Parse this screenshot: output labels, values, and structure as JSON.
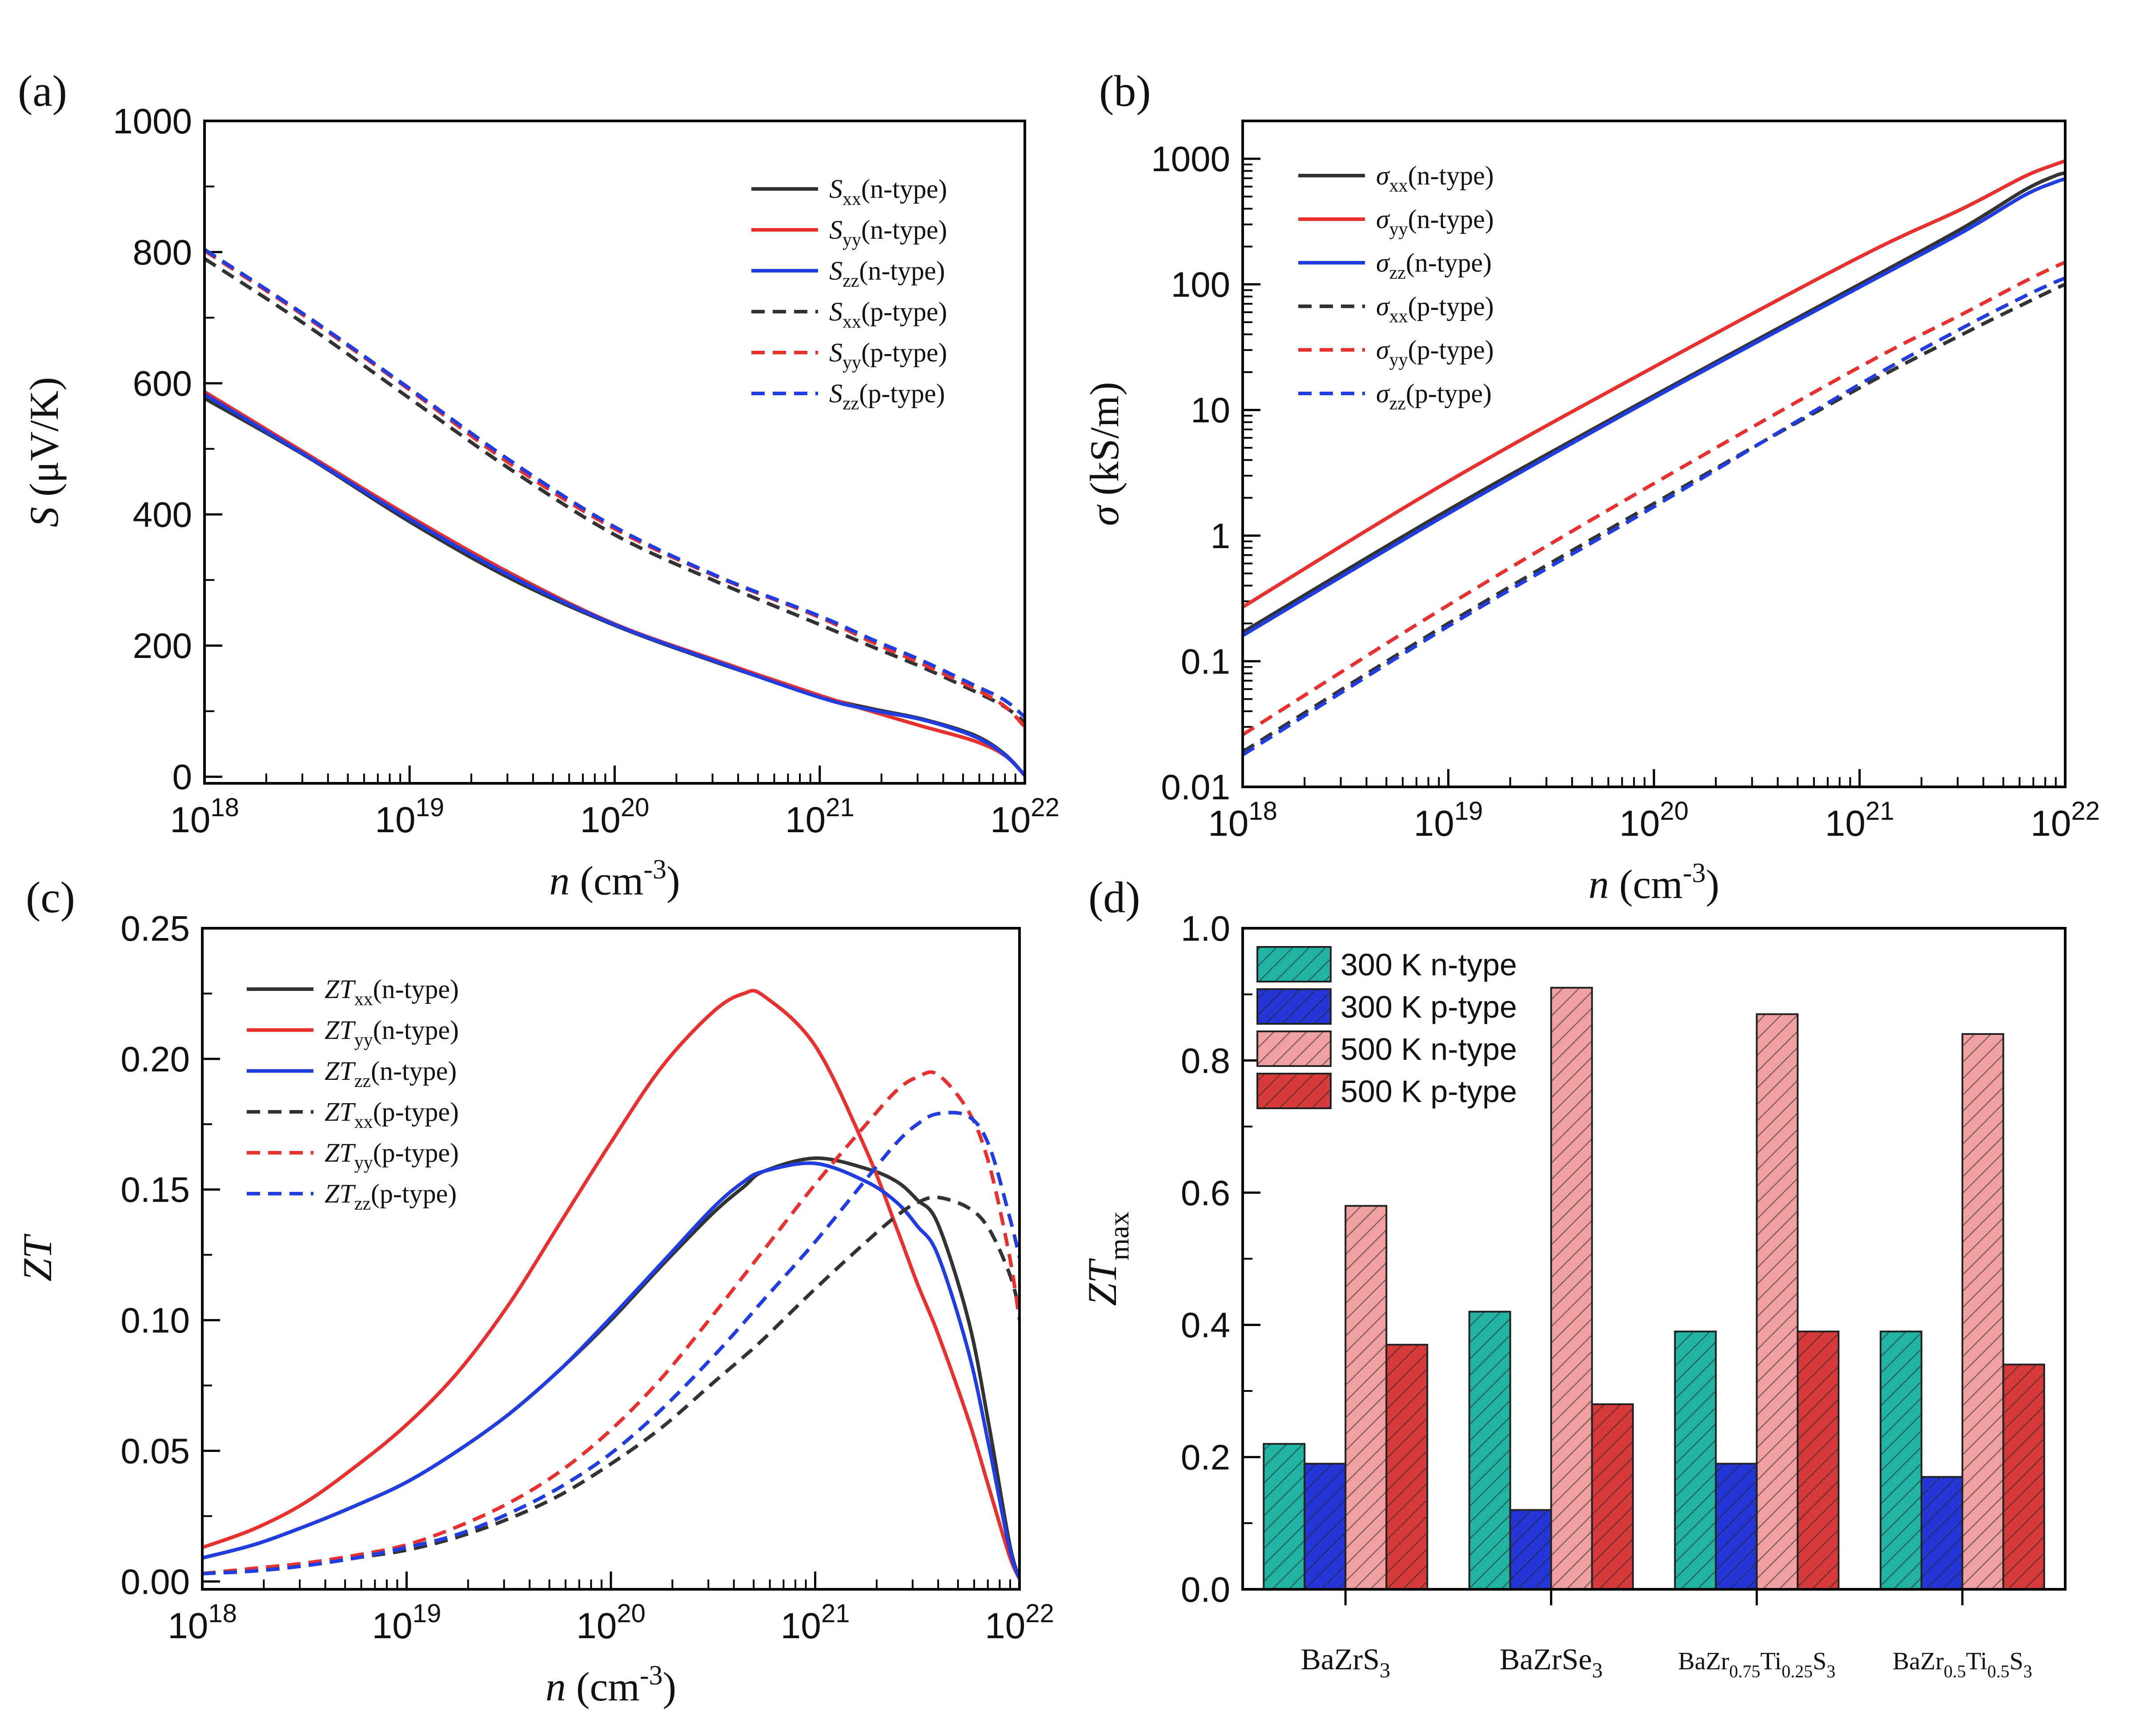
{
  "figure": {
    "colors": {
      "black": "#333333",
      "red": "#e8302f",
      "blue": "#1f3de0",
      "teal": "#22b3a2",
      "navy": "#2536d6",
      "pink": "#f0a0a0",
      "darkred": "#d63a3a"
    }
  },
  "chart_data": [
    {
      "id": "a",
      "panel_label": "(a)",
      "type": "line",
      "title": "",
      "xlabel": {
        "italic": "n",
        "text": " (cm",
        "sup": "-3",
        "close": ")"
      },
      "ylabel": {
        "italic": "S",
        "text": " (μV/K)"
      },
      "xscale": "log",
      "xlim": [
        1e+18,
        1e+22
      ],
      "ylim": [
        -10,
        1000
      ],
      "xticks": [
        {
          "exp": "18",
          "base": "10"
        },
        {
          "exp": "19",
          "base": "10"
        },
        {
          "exp": "20",
          "base": "10"
        },
        {
          "exp": "21",
          "base": "10"
        },
        {
          "exp": "22",
          "base": "10"
        }
      ],
      "yticks": [
        "0",
        "200",
        "400",
        "600",
        "800",
        "1000"
      ],
      "ytick_values": [
        0,
        200,
        400,
        600,
        800,
        1000
      ],
      "legend_position": "top-right",
      "x_log10": [
        18,
        18.5,
        19,
        19.5,
        20,
        20.5,
        21,
        21.25,
        21.5,
        21.75,
        21.9,
        22
      ],
      "series": [
        {
          "name": "S",
          "sub": "xx",
          "suffix": "(n-type)",
          "color": "#333333",
          "dash": "solid",
          "values": [
            577,
            488,
            389,
            301,
            231,
            174,
            123,
            104,
            88,
            64,
            35,
            2
          ]
        },
        {
          "name": "S",
          "sub": "yy",
          "suffix": "(n-type)",
          "color": "#e8302f",
          "dash": "solid",
          "values": [
            587,
            492,
            397,
            309,
            233,
            177,
            124,
            100,
            77,
            55,
            33,
            2
          ]
        },
        {
          "name": "S",
          "sub": "zz",
          "suffix": "(n-type)",
          "color": "#1f3de0",
          "dash": "solid",
          "values": [
            583,
            489,
            393,
            305,
            232,
            175,
            121,
            102,
            87,
            62,
            34,
            2
          ]
        },
        {
          "name": "S",
          "sub": "xx",
          "suffix": "(p-type)",
          "color": "#333333",
          "dash": "dashed",
          "values": [
            790,
            688,
            577,
            467,
            369,
            297,
            232,
            199,
            167,
            131,
            107,
            83
          ]
        },
        {
          "name": "S",
          "sub": "yy",
          "suffix": "(p-type)",
          "color": "#e8302f",
          "dash": "dashed",
          "values": [
            802,
            700,
            590,
            475,
            378,
            305,
            243,
            206,
            172,
            135,
            108,
            76
          ]
        },
        {
          "name": "S",
          "sub": "zz",
          "suffix": "(p-type)",
          "color": "#1f3de0",
          "dash": "dashed",
          "values": [
            804,
            702,
            592,
            480,
            381,
            306,
            245,
            210,
            177,
            140,
            117,
            91
          ]
        }
      ]
    },
    {
      "id": "b",
      "panel_label": "(b)",
      "type": "line",
      "title": "",
      "xlabel": {
        "italic": "n",
        "text": " (cm",
        "sup": "-3",
        "close": ")"
      },
      "ylabel": {
        "italic": "σ",
        "text": " (kS/m)"
      },
      "xscale": "log",
      "yscale": "log",
      "xlim": [
        1e+18,
        1e+22
      ],
      "ylim": [
        0.01,
        2000
      ],
      "xticks": [
        {
          "exp": "18",
          "base": "10"
        },
        {
          "exp": "19",
          "base": "10"
        },
        {
          "exp": "20",
          "base": "10"
        },
        {
          "exp": "21",
          "base": "10"
        },
        {
          "exp": "22",
          "base": "10"
        }
      ],
      "yticks": [
        "0.01",
        "0.1",
        "1",
        "10",
        "100",
        "1000"
      ],
      "ytick_values": [
        0.01,
        0.1,
        1,
        10,
        100,
        1000
      ],
      "legend_position": "top-left",
      "x_log10": [
        18,
        19,
        20,
        21,
        21.5,
        21.8,
        21.95,
        22
      ],
      "series": [
        {
          "name": "σ",
          "sub": "xx",
          "suffix": "(n-type)",
          "color": "#333333",
          "dash": "solid",
          "values": [
            0.17,
            1.6,
            13,
            100,
            280,
            560,
            730,
            770
          ]
        },
        {
          "name": "σ",
          "sub": "yy",
          "suffix": "(n-type)",
          "color": "#e8302f",
          "dash": "solid",
          "values": [
            0.27,
            2.7,
            22,
            165,
            400,
            720,
            900,
            960
          ]
        },
        {
          "name": "σ",
          "sub": "zz",
          "suffix": "(n-type)",
          "color": "#1f3de0",
          "dash": "solid",
          "values": [
            0.16,
            1.5,
            12.5,
            95,
            260,
            510,
            650,
            690
          ]
        },
        {
          "name": "σ",
          "sub": "xx",
          "suffix": "(p-type)",
          "color": "#333333",
          "dash": "dashed",
          "values": [
            0.019,
            0.2,
            1.8,
            15,
            40,
            70,
            92,
            100
          ]
        },
        {
          "name": "σ",
          "sub": "yy",
          "suffix": "(p-type)",
          "color": "#e8302f",
          "dash": "dashed",
          "values": [
            0.026,
            0.28,
            2.6,
            22,
            58,
            105,
            138,
            150
          ]
        },
        {
          "name": "σ",
          "sub": "zz",
          "suffix": "(p-type)",
          "color": "#1f3de0",
          "dash": "dashed",
          "values": [
            0.018,
            0.19,
            1.7,
            16,
            45,
            80,
            104,
            112
          ]
        }
      ]
    },
    {
      "id": "c",
      "panel_label": "(c)",
      "type": "line",
      "title": "",
      "xlabel": {
        "italic": "n",
        "text": " (cm",
        "sup": "-3",
        "close": ")"
      },
      "ylabel": {
        "italic": "ZT",
        "text": ""
      },
      "xscale": "log",
      "xlim": [
        1e+18,
        1e+22
      ],
      "ylim": [
        -0.003,
        0.25
      ],
      "xticks": [
        {
          "exp": "18",
          "base": "10"
        },
        {
          "exp": "19",
          "base": "10"
        },
        {
          "exp": "20",
          "base": "10"
        },
        {
          "exp": "21",
          "base": "10"
        },
        {
          "exp": "22",
          "base": "10"
        }
      ],
      "yticks": [
        "0.00",
        "0.05",
        "0.10",
        "0.15",
        "0.20",
        "0.25"
      ],
      "ytick_values": [
        0,
        0.05,
        0.1,
        0.15,
        0.2,
        0.25
      ],
      "legend_position": "top-left",
      "x_log10": [
        18,
        18.25,
        18.5,
        18.75,
        19,
        19.25,
        19.5,
        19.75,
        20,
        20.25,
        20.5,
        20.65,
        20.75,
        21,
        21.25,
        21.4,
        21.5,
        21.6,
        21.75,
        21.85,
        21.95,
        22
      ],
      "series": [
        {
          "name": "ZT",
          "sub": "xx",
          "suffix": "(n-type)",
          "color": "#333333",
          "dash": "solid",
          "values": [
            0.009,
            0.014,
            0.021,
            0.029,
            0.038,
            0.05,
            0.064,
            0.081,
            0.1,
            0.121,
            0.141,
            0.151,
            0.157,
            0.162,
            0.158,
            0.153,
            0.146,
            0.137,
            0.1,
            0.06,
            0.015,
            0.001
          ]
        },
        {
          "name": "ZT",
          "sub": "yy",
          "suffix": "(n-type)",
          "color": "#e8302f",
          "dash": "solid",
          "values": [
            0.013,
            0.02,
            0.03,
            0.044,
            0.06,
            0.08,
            0.106,
            0.137,
            0.168,
            0.197,
            0.218,
            0.225,
            0.224,
            0.205,
            0.165,
            0.135,
            0.114,
            0.095,
            0.062,
            0.036,
            0.01,
            0.001
          ]
        },
        {
          "name": "ZT",
          "sub": "zz",
          "suffix": "(n-type)",
          "color": "#1f3de0",
          "dash": "solid",
          "values": [
            0.009,
            0.014,
            0.021,
            0.029,
            0.038,
            0.05,
            0.064,
            0.081,
            0.101,
            0.122,
            0.143,
            0.153,
            0.157,
            0.16,
            0.153,
            0.145,
            0.136,
            0.125,
            0.088,
            0.052,
            0.013,
            0.001
          ]
        },
        {
          "name": "ZT",
          "sub": "xx",
          "suffix": "(p-type)",
          "color": "#333333",
          "dash": "dashed",
          "values": [
            0.003,
            0.004,
            0.006,
            0.009,
            0.012,
            0.017,
            0.024,
            0.033,
            0.045,
            0.059,
            0.076,
            0.086,
            0.093,
            0.112,
            0.13,
            0.14,
            0.145,
            0.147,
            0.143,
            0.135,
            0.118,
            0.104
          ]
        },
        {
          "name": "ZT",
          "sub": "yy",
          "suffix": "(p-type)",
          "color": "#e8302f",
          "dash": "dashed",
          "values": [
            0.003,
            0.005,
            0.007,
            0.01,
            0.014,
            0.021,
            0.03,
            0.042,
            0.058,
            0.078,
            0.102,
            0.117,
            0.127,
            0.152,
            0.175,
            0.188,
            0.193,
            0.194,
            0.18,
            0.16,
            0.125,
            0.1
          ]
        },
        {
          "name": "ZT",
          "sub": "zz",
          "suffix": "(p-type)",
          "color": "#1f3de0",
          "dash": "dashed",
          "values": [
            0.003,
            0.004,
            0.006,
            0.009,
            0.013,
            0.018,
            0.026,
            0.036,
            0.049,
            0.066,
            0.086,
            0.099,
            0.108,
            0.13,
            0.154,
            0.168,
            0.175,
            0.179,
            0.178,
            0.167,
            0.14,
            0.124
          ]
        }
      ]
    },
    {
      "id": "d",
      "panel_label": "(d)",
      "type": "bar",
      "title": "",
      "xlabel": "",
      "ylabel": {
        "italic": "ZT",
        "sub": "max"
      },
      "ylim": [
        0,
        1.0
      ],
      "yticks": [
        "0.0",
        "0.2",
        "0.4",
        "0.6",
        "0.8",
        "1.0"
      ],
      "ytick_values": [
        0,
        0.2,
        0.4,
        0.6,
        0.8,
        1.0
      ],
      "legend_position": "top-left",
      "categories": [
        {
          "parts": [
            {
              "t": "BaZrS"
            },
            {
              "s": "3"
            }
          ]
        },
        {
          "parts": [
            {
              "t": "BaZrSe"
            },
            {
              "s": "3"
            }
          ]
        },
        {
          "parts": [
            {
              "t": "BaZr"
            },
            {
              "s": "0.75"
            },
            {
              "t": "Ti"
            },
            {
              "s": "0.25"
            },
            {
              "t": "S"
            },
            {
              "s": "3"
            }
          ]
        },
        {
          "parts": [
            {
              "t": "BaZr"
            },
            {
              "s": "0.5"
            },
            {
              "t": "Ti"
            },
            {
              "s": "0.5"
            },
            {
              "t": "S"
            },
            {
              "s": "3"
            }
          ]
        }
      ],
      "series": [
        {
          "name": "300 K n-type",
          "color": "#22b3a2",
          "values": [
            0.22,
            0.42,
            0.39,
            0.39
          ]
        },
        {
          "name": "300 K p-type",
          "color": "#2536d6",
          "values": [
            0.19,
            0.12,
            0.19,
            0.17
          ]
        },
        {
          "name": "500 K n-type",
          "color": "#f0a0a0",
          "values": [
            0.58,
            0.91,
            0.87,
            0.84
          ]
        },
        {
          "name": "500 K p-type",
          "color": "#d63a3a",
          "values": [
            0.37,
            0.28,
            0.39,
            0.34
          ]
        }
      ]
    }
  ]
}
